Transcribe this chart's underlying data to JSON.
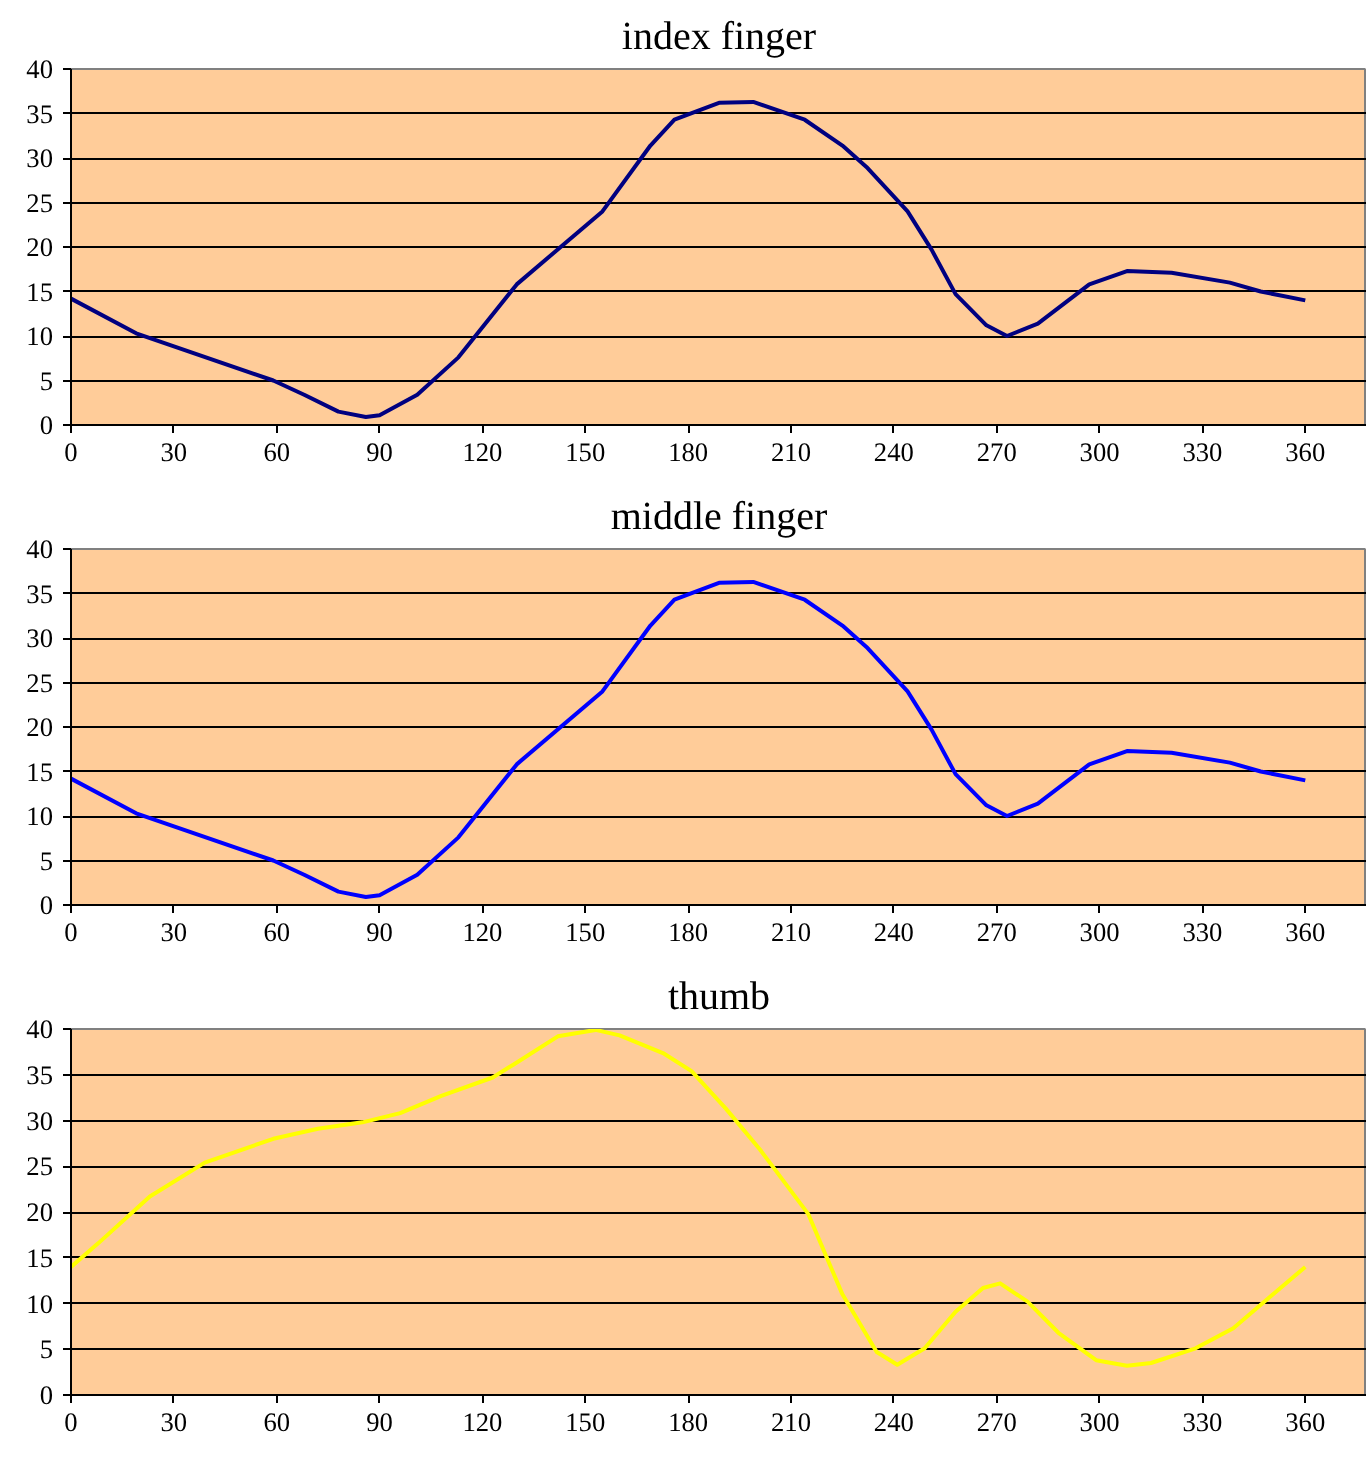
{
  "chart_data": [
    {
      "type": "line",
      "title": "index finger",
      "xlim": [
        0,
        378
      ],
      "ylim": [
        0,
        40
      ],
      "xticks": [
        0,
        30,
        60,
        90,
        120,
        150,
        180,
        210,
        240,
        270,
        300,
        330,
        360
      ],
      "yticks": [
        0,
        5,
        10,
        15,
        20,
        25,
        30,
        35,
        40
      ],
      "grid": "y",
      "series": [
        {
          "color": "#000080",
          "x": [
            0,
            19,
            59,
            68,
            78,
            86,
            90,
            101,
            113,
            130,
            155,
            169,
            176,
            189,
            199,
            214,
            225,
            232,
            244,
            251,
            258,
            267,
            273,
            282,
            297,
            308,
            321,
            338,
            347,
            360
          ],
          "values": [
            14.2,
            10.3,
            5,
            3.4,
            1.5,
            0.9,
            1.1,
            3.4,
            7.6,
            15.8,
            24,
            31.4,
            34.3,
            36.2,
            36.3,
            34.3,
            31.4,
            29,
            24,
            19.7,
            14.7,
            11.2,
            10,
            11.4,
            15.8,
            17.3,
            17.1,
            16,
            15,
            14
          ]
        }
      ]
    },
    {
      "type": "line",
      "title": "middle finger",
      "xlim": [
        0,
        378
      ],
      "ylim": [
        0,
        40
      ],
      "xticks": [
        0,
        30,
        60,
        90,
        120,
        150,
        180,
        210,
        240,
        270,
        300,
        330,
        360
      ],
      "yticks": [
        0,
        5,
        10,
        15,
        20,
        25,
        30,
        35,
        40
      ],
      "grid": "y",
      "series": [
        {
          "color": "#0000ff",
          "x": [
            0,
            19,
            59,
            68,
            78,
            86,
            90,
            101,
            113,
            130,
            155,
            169,
            176,
            189,
            199,
            214,
            225,
            232,
            244,
            251,
            258,
            267,
            273,
            282,
            297,
            308,
            321,
            338,
            347,
            360
          ],
          "values": [
            14.2,
            10.3,
            5,
            3.4,
            1.5,
            0.9,
            1.1,
            3.4,
            7.6,
            15.8,
            24,
            31.4,
            34.3,
            36.2,
            36.3,
            34.3,
            31.4,
            29,
            24,
            19.7,
            14.7,
            11.2,
            10,
            11.4,
            15.8,
            17.3,
            17.1,
            16,
            15,
            14
          ]
        }
      ]
    },
    {
      "type": "line",
      "title": "thumb",
      "xlim": [
        0,
        378
      ],
      "ylim": [
        0,
        40
      ],
      "xticks": [
        0,
        30,
        60,
        90,
        120,
        150,
        180,
        210,
        240,
        270,
        300,
        330,
        360
      ],
      "yticks": [
        0,
        5,
        10,
        15,
        20,
        25,
        30,
        35,
        40
      ],
      "grid": "y",
      "series": [
        {
          "color": "#ffff00",
          "x": [
            0,
            8,
            23,
            39,
            59,
            72,
            85,
            96,
            108,
            123,
            129,
            142,
            153,
            160,
            173,
            181,
            191,
            201,
            215,
            225,
            235,
            241,
            249,
            258,
            266,
            271,
            279,
            288,
            299,
            308,
            315,
            328,
            339,
            360
          ],
          "values": [
            14,
            16.6,
            21.7,
            25.4,
            28,
            29.1,
            29.8,
            30.8,
            32.7,
            34.7,
            36.1,
            39.2,
            39.9,
            39.3,
            37.3,
            35.4,
            31.3,
            26.8,
            19.8,
            11,
            4.7,
            3.3,
            5.1,
            9.1,
            11.7,
            12.2,
            10.2,
            6.8,
            3.8,
            3.2,
            3.5,
            5.1,
            7.3,
            14
          ]
        }
      ]
    }
  ]
}
